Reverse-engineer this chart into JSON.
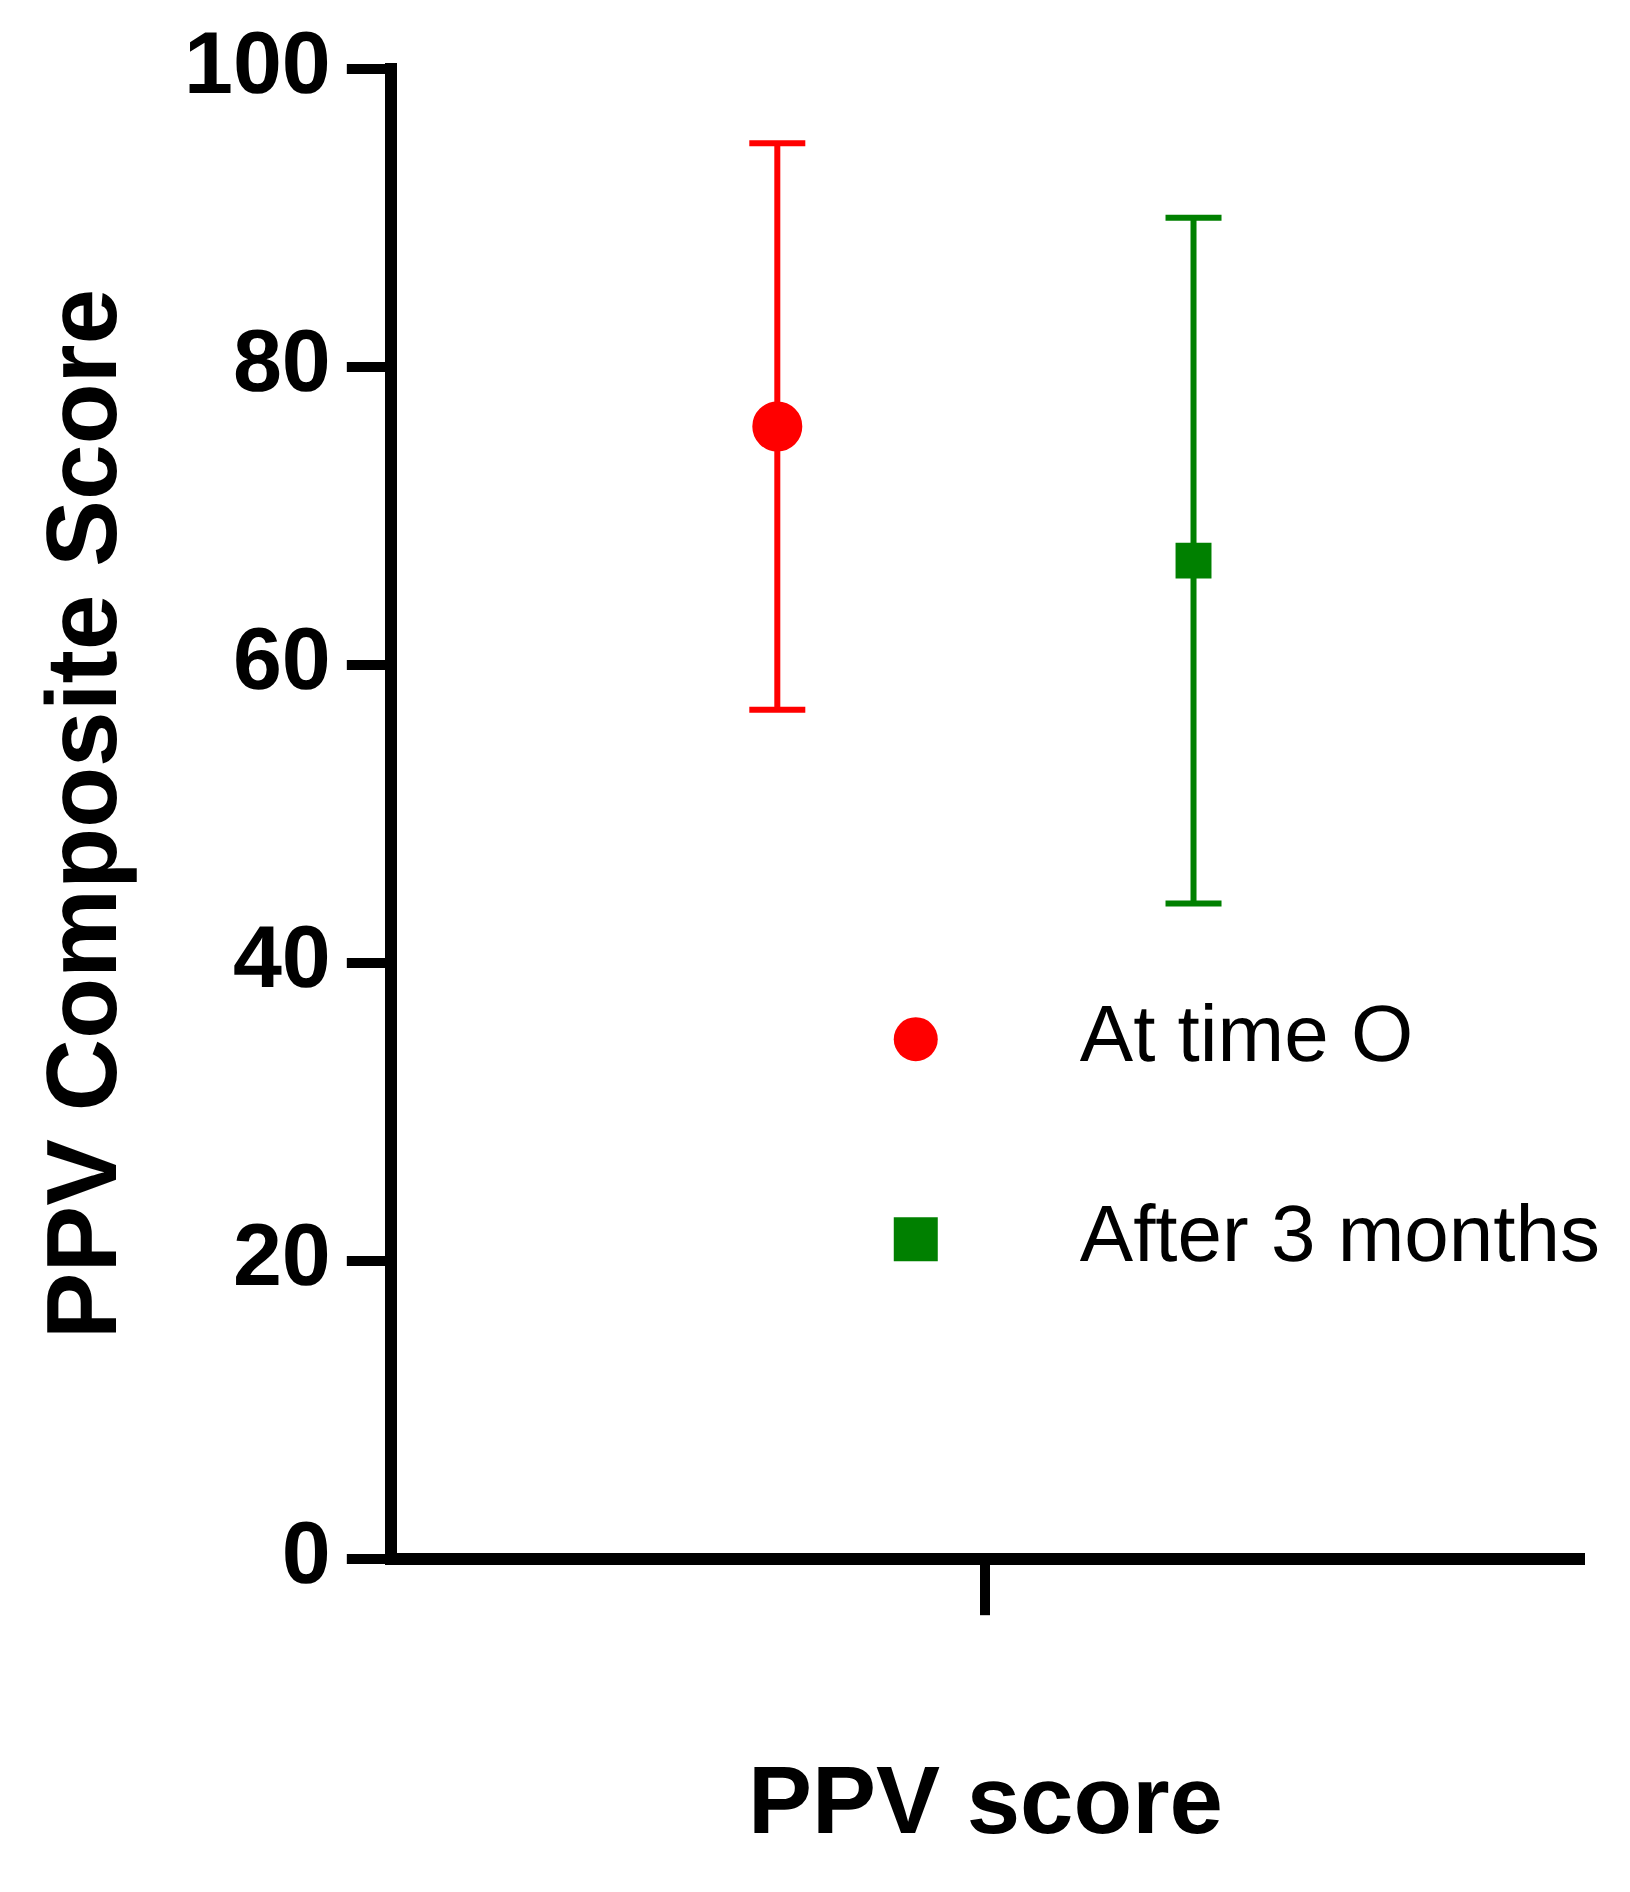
{
  "chart_data": {
    "type": "scatter",
    "xlabel": "PPV score",
    "ylabel": "PPV Composite Score",
    "categories": [
      null
    ],
    "series": [
      {
        "name": "At time O",
        "color": "#ff0000",
        "values": [
          76
        ],
        "errors": [
          [
            57,
            95
          ]
        ],
        "marker": "circle"
      },
      {
        "name": "After 3 months",
        "color": "#008000",
        "values": [
          67
        ],
        "errors": [
          [
            44,
            90
          ]
        ],
        "marker": "square"
      }
    ],
    "ylim": [
      0,
      100
    ],
    "yticks": [
      0,
      20,
      40,
      60,
      80,
      100
    ],
    "grid": false,
    "legend": "bottom right"
  }
}
